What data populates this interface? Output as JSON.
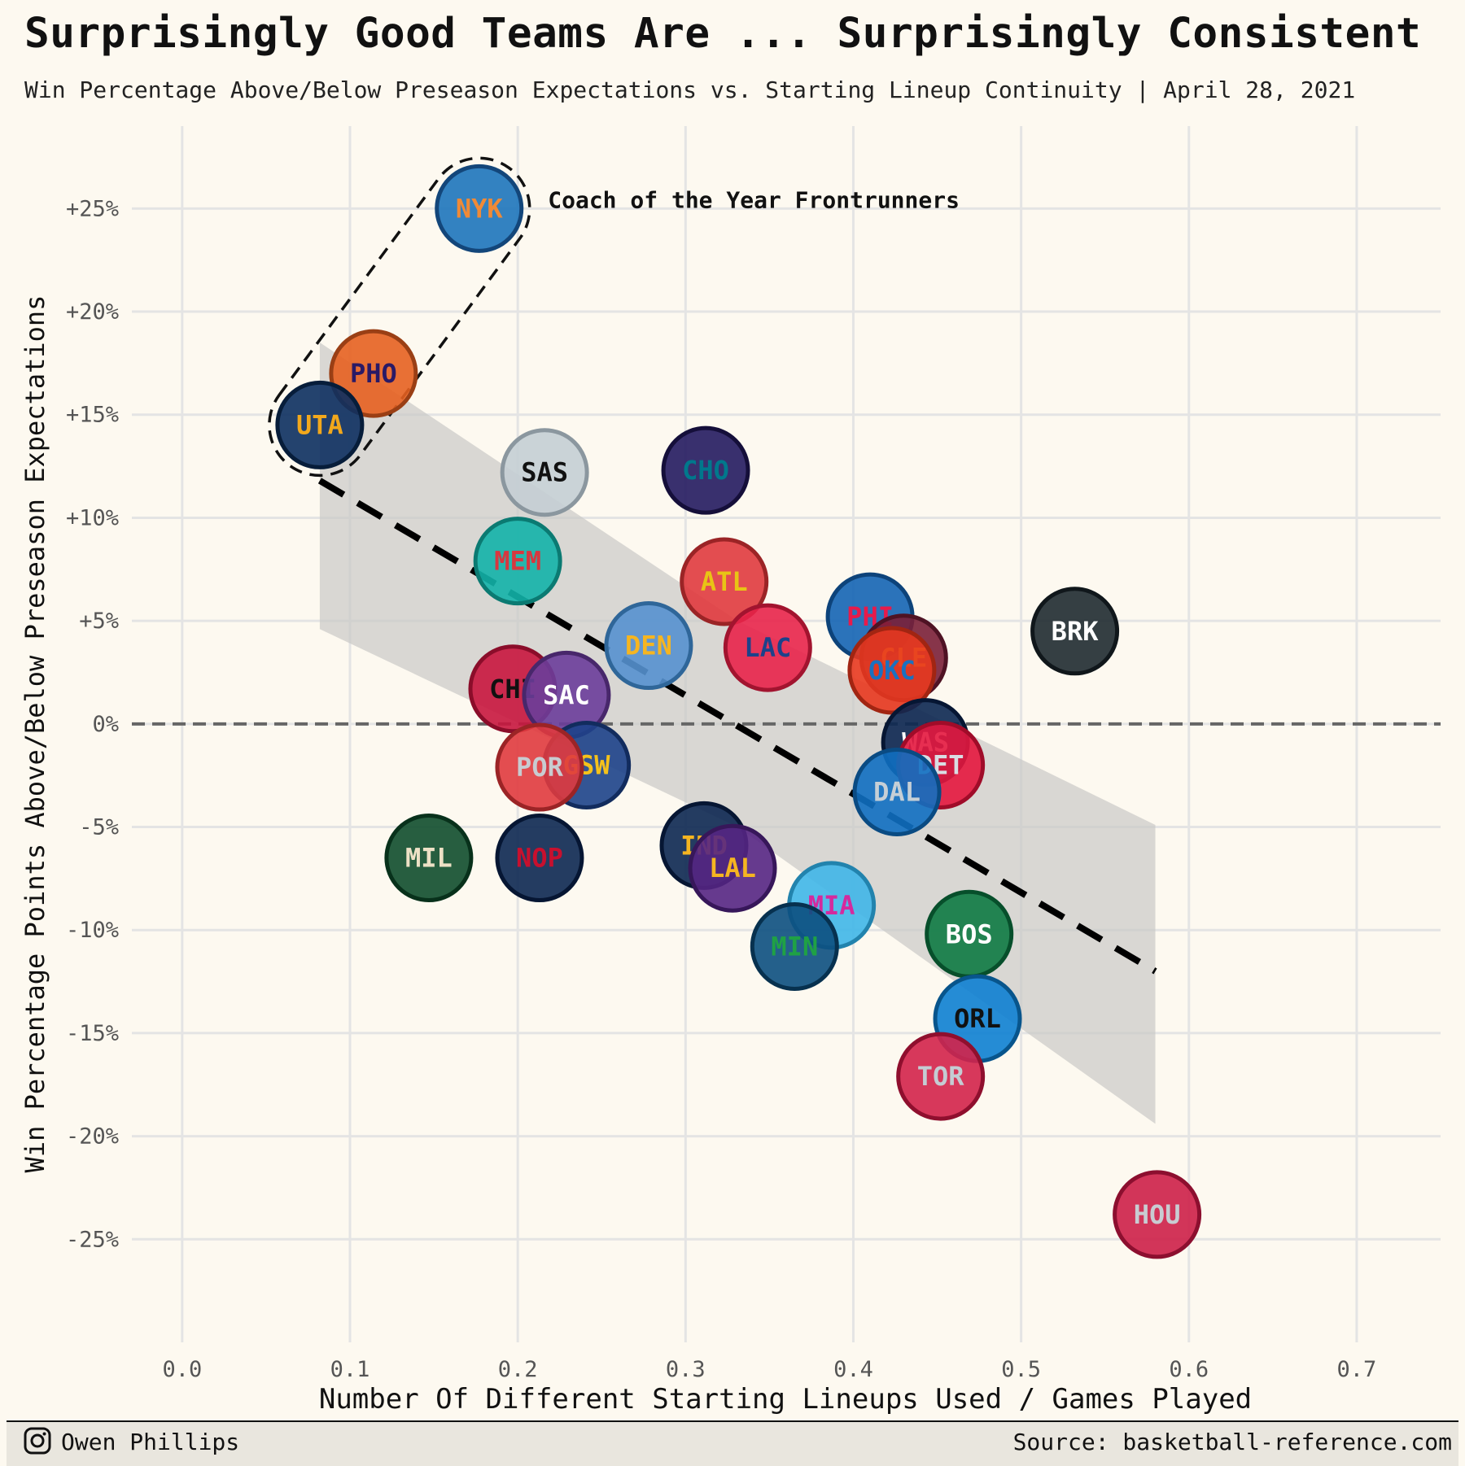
{
  "title": "Surprisingly Good Teams Are ... Surprisingly Consistent",
  "subtitle": "Win Percentage Above/Below Preseason Expectations vs. Starting Lineup Continuity | April 28, 2021",
  "author": "Owen Phillips",
  "source": "Source: basketball-reference.com",
  "chart_data": {
    "type": "scatter",
    "xlabel": "Number Of Different Starting Lineups Used / Games Played",
    "ylabel": "Win Percentage Points Above/Below Preseason Expectations",
    "xlim": [
      -0.03,
      0.75
    ],
    "ylim": [
      -30,
      29
    ],
    "x_ticks": [
      0.0,
      0.1,
      0.2,
      0.3,
      0.4,
      0.5,
      0.6,
      0.7
    ],
    "x_tick_labels": [
      "0.0",
      "0.1",
      "0.2",
      "0.3",
      "0.4",
      "0.5",
      "0.6",
      "0.7"
    ],
    "y_ticks": [
      25,
      20,
      15,
      10,
      5,
      0,
      -5,
      -10,
      -15,
      -20,
      -25
    ],
    "y_tick_labels": [
      "+25%",
      "+20%",
      "+15%",
      "+10%",
      "+5%",
      "0%",
      "-5%",
      "-10%",
      "-15%",
      "-20%",
      "-25%"
    ],
    "grid": true,
    "zero_line": "dashed",
    "annotation": {
      "text": "Coach of the Year Frontrunners",
      "x": 0.218,
      "y": 25.5,
      "highlighted_teams": [
        "NYK",
        "PHO",
        "UTA"
      ]
    },
    "trend": {
      "type": "linear",
      "x": [
        0.082,
        0.58
      ],
      "y": [
        11.8,
        -12.0
      ],
      "ci_upper": [
        18.5,
        5.0,
        -4.9
      ],
      "ci_lower": [
        4.6,
        -5.0,
        -19.4
      ],
      "ci_x": [
        0.082,
        0.331,
        0.58
      ]
    },
    "points": [
      {
        "team": "NYK",
        "x": 0.177,
        "y": 25.0,
        "fill": "#1d74bb",
        "border": "#13467a",
        "text_color": "#f08a36"
      },
      {
        "team": "PHO",
        "x": 0.114,
        "y": 17.0,
        "fill": "#e56020",
        "border": "#9a3f15",
        "text_color": "#2a1a66"
      },
      {
        "team": "UTA",
        "x": 0.082,
        "y": 14.5,
        "fill": "#0c2f5f",
        "border": "#071d3a",
        "text_color": "#f2a81c"
      },
      {
        "team": "SAS",
        "x": 0.216,
        "y": 12.2,
        "fill": "#c4ced4",
        "border": "#8b979f",
        "text_color": "#111111"
      },
      {
        "team": "CHO",
        "x": 0.312,
        "y": 12.3,
        "fill": "#241a5f",
        "border": "#150f3a",
        "text_color": "#00788c"
      },
      {
        "team": "MEM",
        "x": 0.2,
        "y": 7.9,
        "fill": "#12b3a8",
        "border": "#0b7a72",
        "text_color": "#d8373f"
      },
      {
        "team": "ATL",
        "x": 0.323,
        "y": 6.9,
        "fill": "#e03a3e",
        "border": "#9b2426",
        "text_color": "#e8c415"
      },
      {
        "team": "PHI",
        "x": 0.41,
        "y": 5.2,
        "fill": "#1464b4",
        "border": "#0d437a",
        "text_color": "#e81a4a"
      },
      {
        "team": "BRK",
        "x": 0.532,
        "y": 4.5,
        "fill": "#1f2a30",
        "border": "#10171b",
        "text_color": "#ffffff"
      },
      {
        "team": "DEN",
        "x": 0.278,
        "y": 3.8,
        "fill": "#5591cf",
        "border": "#2f6699",
        "text_color": "#f5b521"
      },
      {
        "team": "LAC",
        "x": 0.349,
        "y": 3.7,
        "fill": "#e8234a",
        "border": "#a2142f",
        "text_color": "#1d428a"
      },
      {
        "team": "CLE",
        "x": 0.43,
        "y": 3.2,
        "fill": "#7a1f37",
        "border": "#4f1324",
        "text_color": "#f6b51f"
      },
      {
        "team": "OKC",
        "x": 0.423,
        "y": 2.6,
        "fill": "#e8381f",
        "border": "#a12512",
        "text_color": "#1a71c0"
      },
      {
        "team": "CHI",
        "x": 0.197,
        "y": 1.7,
        "fill": "#c8163e",
        "border": "#8b0d2a",
        "text_color": "#111111"
      },
      {
        "team": "SAC",
        "x": 0.229,
        "y": 1.4,
        "fill": "#6a3d9a",
        "border": "#48276b",
        "text_color": "#ffffff"
      },
      {
        "team": "WAS",
        "x": 0.443,
        "y": -0.9,
        "fill": "#0c2751",
        "border": "#061633",
        "text_color": "#ffffff"
      },
      {
        "team": "DET",
        "x": 0.452,
        "y": -2.0,
        "fill": "#e4173e",
        "border": "#a00c29",
        "text_color": "#d9dde3"
      },
      {
        "team": "GSW",
        "x": 0.241,
        "y": -2.0,
        "fill": "#1d428a",
        "border": "#122c5e",
        "text_color": "#f5c21b"
      },
      {
        "team": "POR",
        "x": 0.213,
        "y": -2.1,
        "fill": "#e03a3e",
        "border": "#9b2426",
        "text_color": "#c8cbd0"
      },
      {
        "team": "DAL",
        "x": 0.426,
        "y": -3.3,
        "fill": "#0f6fc1",
        "border": "#0a4b83",
        "text_color": "#c6cfd6"
      },
      {
        "team": "IND",
        "x": 0.311,
        "y": -5.9,
        "fill": "#0c2751",
        "border": "#061633",
        "text_color": "#f5b521"
      },
      {
        "team": "LAL",
        "x": 0.328,
        "y": -7.0,
        "fill": "#552583",
        "border": "#37175a",
        "text_color": "#f5b521"
      },
      {
        "team": "MIL",
        "x": 0.147,
        "y": -6.5,
        "fill": "#104d2c",
        "border": "#08311b",
        "text_color": "#eee1c6"
      },
      {
        "team": "NOP",
        "x": 0.213,
        "y": -6.5,
        "fill": "#0c2751",
        "border": "#061633",
        "text_color": "#c8102e"
      },
      {
        "team": "MIA",
        "x": 0.387,
        "y": -8.8,
        "fill": "#3fb6e8",
        "border": "#2283ad",
        "text_color": "#d42a9e"
      },
      {
        "team": "MIN",
        "x": 0.365,
        "y": -10.8,
        "fill": "#0c4f80",
        "border": "#07314f",
        "text_color": "#1fa145"
      },
      {
        "team": "BOS",
        "x": 0.469,
        "y": -10.2,
        "fill": "#0d7a43",
        "border": "#074f2b",
        "text_color": "#ffffff"
      },
      {
        "team": "ORL",
        "x": 0.474,
        "y": -14.3,
        "fill": "#0d7fd1",
        "border": "#08558c",
        "text_color": "#111111"
      },
      {
        "team": "TOR",
        "x": 0.452,
        "y": -17.1,
        "fill": "#d3224a",
        "border": "#8f0f2e",
        "text_color": "#c4ccd3"
      },
      {
        "team": "HOU",
        "x": 0.581,
        "y": -23.8,
        "fill": "#cd1f48",
        "border": "#8c0f2f",
        "text_color": "#c8ccd2"
      }
    ]
  }
}
